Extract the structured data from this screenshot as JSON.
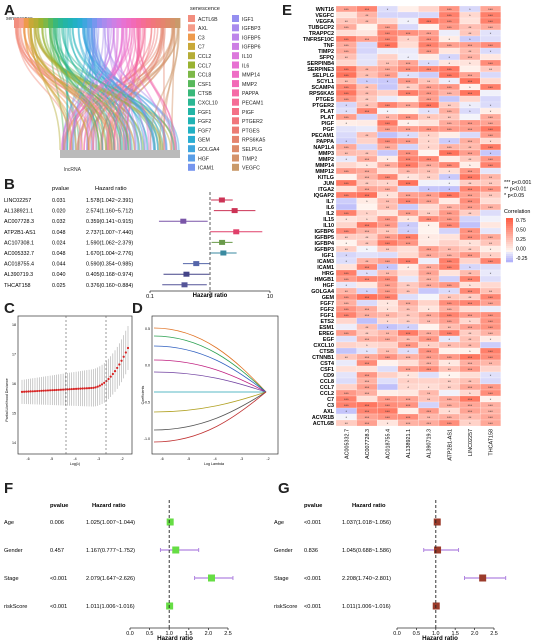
{
  "panel_letters": {
    "A": "A",
    "B": "B",
    "C": "C",
    "D": "D",
    "E": "E",
    "F": "F",
    "G": "G"
  },
  "panelA": {
    "top_label": "senescence",
    "bottom_label": "lncRNA",
    "legend_title": "senescence",
    "genes_col1": [
      "ACTL6B",
      "AXL",
      "C3",
      "C7",
      "CCL2",
      "CCL7",
      "CCL8",
      "CSF1",
      "CTSB",
      "CXCL10",
      "FGF1",
      "FGF2",
      "FGF7",
      "GEM",
      "GOLGA4",
      "HGF",
      "ICAM1"
    ],
    "genes_col2": [
      "IGF1",
      "IGFBP3",
      "IGFBP5",
      "IGFBP6",
      "IL10",
      "IL6",
      "MMP14",
      "MMP2",
      "PAPPA",
      "PECAM1",
      "PIGF",
      "PTGER2",
      "PTGES",
      "RPS6KA5",
      "SELPLG",
      "TIMP2",
      "VEGFC"
    ],
    "colors_col1": [
      "#f28e7f",
      "#f59c8a",
      "#ee9a4c",
      "#c8a838",
      "#b5ad37",
      "#99b332",
      "#7db848",
      "#58b95c",
      "#39b87a",
      "#2bb794",
      "#23b5a6",
      "#20b3b5",
      "#22b1c4",
      "#2aadd2",
      "#3fa6de",
      "#5a9ee7",
      "#7796ee"
    ],
    "colors_col2": [
      "#958ff0",
      "#a98bed",
      "#bd85ea",
      "#cd7fe4",
      "#dc78dc",
      "#e771d2",
      "#ee6dc5",
      "#f26ab7",
      "#f56aa6",
      "#f56d96",
      "#f47187",
      "#f1767c",
      "#ec7c74",
      "#e5846e",
      "#dd8b6a",
      "#d49269",
      "#c99a6a"
    ]
  },
  "panelB": {
    "col_pvalue": "pvalue",
    "col_hr": "Hazard ratio",
    "xlabel": "Hazard ratio",
    "ticks": [
      "0.1",
      "1",
      "10"
    ],
    "rows": [
      {
        "name": "LINC02257",
        "p": "0.031",
        "hr_text": "1.578(1.042~2.391)",
        "hr": 1.578,
        "lo": 1.042,
        "hi": 2.391,
        "color": "#cc3355"
      },
      {
        "name": "AL138921.1",
        "p": "0.020",
        "hr_text": "2.574(1.160~5.712)",
        "hr": 2.574,
        "lo": 1.16,
        "hi": 5.712,
        "color": "#cc3355"
      },
      {
        "name": "AC007728.3",
        "p": "0.032",
        "hr_text": "0.359(0.141~0.915)",
        "hr": 0.359,
        "lo": 0.141,
        "hi": 0.915,
        "color": "#7a55a8"
      },
      {
        "name": "ATP2B1-AS1",
        "p": "0.048",
        "hr_text": "2.737(1.007~7.440)",
        "hr": 2.737,
        "lo": 1.007,
        "hi": 7.44,
        "color": "#e0406a"
      },
      {
        "name": "AC107308.1",
        "p": "0.024",
        "hr_text": "1.590(1.062~2.379)",
        "hr": 1.59,
        "lo": 1.062,
        "hi": 2.379,
        "color": "#6a9a4a"
      },
      {
        "name": "AC005332.7",
        "p": "0.048",
        "hr_text": "1.670(1.004~2.776)",
        "hr": 1.67,
        "lo": 1.004,
        "hi": 2.776,
        "color": "#3a8aa0"
      },
      {
        "name": "AC018755.4",
        "p": "0.044",
        "hr_text": "0.590(0.354~0.985)",
        "hr": 0.59,
        "lo": 0.354,
        "hi": 0.985,
        "color": "#5566aa"
      },
      {
        "name": "AL390719.3",
        "p": "0.040",
        "hr_text": "0.405(0.168~0.974)",
        "hr": 0.405,
        "lo": 0.168,
        "hi": 0.974,
        "color": "#444488"
      },
      {
        "name": "THCAT158",
        "p": "0.025",
        "hr_text": "0.376(0.160~0.884)",
        "hr": 0.376,
        "lo": 0.16,
        "hi": 0.884,
        "color": "#555599"
      }
    ]
  },
  "panelC": {
    "ylabel": "Partial Likelihood Deviance",
    "xlabel": "Log(λ)",
    "x_ticks": [
      "-6",
      "-5",
      "-4",
      "-3",
      "-2"
    ],
    "y_ticks": [
      "14",
      "15",
      "16",
      "17",
      "18"
    ]
  },
  "panelD": {
    "ylabel": "Coefficients",
    "xlabel": "Log Lambda",
    "x_ticks": [
      "-6",
      "-5",
      "-4",
      "-3",
      "-2"
    ],
    "y_ticks": [
      "-1.0",
      "-0.5",
      "0.0",
      "0.5"
    ]
  },
  "panelE": {
    "legend_title": "Correlation",
    "sig_legend": [
      "*** p<0.001",
      "** p<0.01",
      "* p<0.05"
    ],
    "scale_ticks": [
      "0.75",
      "0.50",
      "0.25",
      "0.00",
      "-0.25"
    ],
    "columns": [
      "AC005332.7",
      "AC007728.3",
      "AC018755.4",
      "AL138921.1",
      "AL390719.3",
      "ATP2B1-AS1",
      "LINC02257",
      "THCAT158"
    ],
    "rows": [
      "WNT16",
      "VEGFC",
      "VEGFA",
      "TUBGCP2",
      "TRAPPC2",
      "TNFRSF10C",
      "TNF",
      "TIMP2",
      "SFPQ",
      "SERPINB4",
      "SERPINE3",
      "SELPLG",
      "SCYL1",
      "SCAMP4",
      "RPS6KA5",
      "PTGES",
      "PTGER2",
      "PLAT",
      "PLAT",
      "PIGF",
      "PGF",
      "PECAM1",
      "PAPPA",
      "NAP1L4",
      "MMP3",
      "MMP2",
      "MMP14",
      "MMP12",
      "KITLG",
      "JUN",
      "ITGA2",
      "IQGAP2",
      "IL7",
      "IL6",
      "IL2",
      "IL15",
      "IL10",
      "IGFBP6",
      "IGFBP5",
      "IGFBP4",
      "IGFBP3",
      "IGF1",
      "ICAM3",
      "ICAM1",
      "HRG",
      "HMGB1",
      "HGF",
      "GOLGA4",
      "GEM",
      "FGF7",
      "FGF2",
      "FGF1",
      "ETS2",
      "ESM1",
      "EREG",
      "EGF",
      "CXCL10",
      "CTSB",
      "CTNNB1",
      "CST4",
      "CSF1",
      "CD9",
      "CCL8",
      "CCL7",
      "CCL2",
      "C7",
      "C3",
      "AXL",
      "ACVR1B",
      "ACTL6B"
    ]
  },
  "panelF": {
    "col_pvalue": "pvalue",
    "col_hr": "Hazard ratio",
    "xlabel": "Hazard ratio",
    "ticks": [
      "0.0",
      "0.5",
      "1.0",
      "1.5",
      "2.0",
      "2.5"
    ],
    "rows": [
      {
        "name": "Age",
        "p": "0.006",
        "hr_text": "1.025(1.007~1.044)",
        "hr": 1.025,
        "lo": 1.007,
        "hi": 1.044
      },
      {
        "name": "Gender",
        "p": "0.457",
        "hr_text": "1.167(0.777~1.752)",
        "hr": 1.167,
        "lo": 0.777,
        "hi": 1.752
      },
      {
        "name": "Stage",
        "p": "<0.001",
        "hr_text": "2.079(1.647~2.626)",
        "hr": 2.079,
        "lo": 1.647,
        "hi": 2.626
      },
      {
        "name": "riskScore",
        "p": "<0.001",
        "hr_text": "1.011(1.006~1.016)",
        "hr": 1.011,
        "lo": 1.006,
        "hi": 1.016
      }
    ],
    "marker_color": "#66dd44",
    "ci_color": "#b085e0"
  },
  "panelG": {
    "col_pvalue": "pvalue",
    "col_hr": "Hazard ratio",
    "xlabel": "Hazard ratio",
    "ticks": [
      "0.0",
      "0.5",
      "1.0",
      "1.5",
      "2.0",
      "2.5"
    ],
    "rows": [
      {
        "name": "Age",
        "p": "<0.001",
        "hr_text": "1.037(1.018~1.056)",
        "hr": 1.037,
        "lo": 1.018,
        "hi": 1.056
      },
      {
        "name": "Gender",
        "p": "0.836",
        "hr_text": "1.045(0.688~1.586)",
        "hr": 1.045,
        "lo": 0.688,
        "hi": 1.586
      },
      {
        "name": "Stage",
        "p": "<0.001",
        "hr_text": "2.208(1.740~2.801)",
        "hr": 2.208,
        "lo": 1.74,
        "hi": 2.801
      },
      {
        "name": "riskScore",
        "p": "<0.001",
        "hr_text": "1.011(1.006~1.016)",
        "hr": 1.011,
        "lo": 1.006,
        "hi": 1.016
      }
    ],
    "marker_color": "#9b3b2b",
    "ci_color": "#b085e0"
  }
}
